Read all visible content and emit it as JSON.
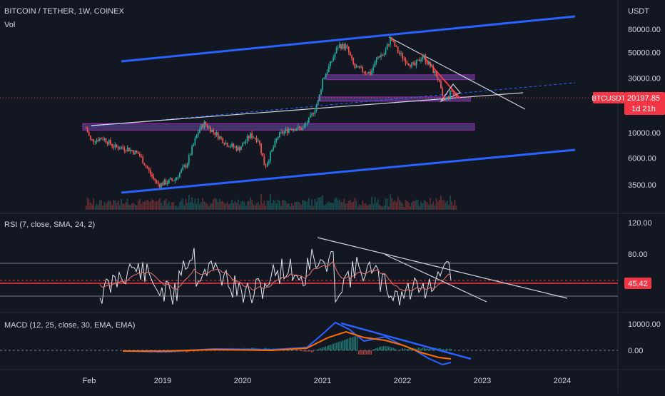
{
  "header": {
    "symbol_title": "BITCOIN / TETHER, 1W, COINEX",
    "volume_label": "Vol",
    "currency": "USDT"
  },
  "price_badge": {
    "ticker": "BTCUSDT",
    "price": "20197.85",
    "countdown": "1d 21h"
  },
  "rsi_badge": "45.42",
  "colors": {
    "background": "#131722",
    "up": "#26a69a",
    "down": "#ef5350",
    "channel": "#2962ff",
    "zone": "#7e57c2",
    "price_line": "#f23645",
    "text": "#d1d4dc",
    "macd": "#2962ff",
    "signal": "#ff6d00"
  },
  "chart_data": [
    {
      "type": "line",
      "name": "price-pane",
      "scale": "log",
      "x_ticks": [
        "Feb",
        "2019",
        "2020",
        "2021",
        "2022",
        "2023",
        "2024"
      ],
      "y_ticks": [
        "80000.00",
        "50000.00",
        "30000.00",
        "10000.00",
        "6000.00",
        "3500.00"
      ],
      "y_tick_values": [
        80000,
        50000,
        30000,
        10000,
        6000,
        3500
      ],
      "x": [
        2018.04,
        2018.1,
        2018.25,
        2018.4,
        2018.55,
        2018.7,
        2018.88,
        2018.95,
        2019.0,
        2019.15,
        2019.3,
        2019.45,
        2019.52,
        2019.65,
        2019.8,
        2019.95,
        2020.1,
        2020.2,
        2020.28,
        2020.45,
        2020.6,
        2020.75,
        2020.85,
        2020.95,
        2021.0,
        2021.1,
        2021.2,
        2021.3,
        2021.4,
        2021.5,
        2021.6,
        2021.7,
        2021.77,
        2021.85,
        2021.95,
        2022.05,
        2022.15,
        2022.25,
        2022.35,
        2022.45,
        2022.5,
        2022.55,
        2022.62,
        2022.68
      ],
      "close": [
        11000,
        8500,
        9000,
        7500,
        7300,
        6500,
        4000,
        3500,
        3600,
        3900,
        5300,
        10500,
        12000,
        10000,
        8000,
        7200,
        9500,
        8700,
        5000,
        9500,
        11000,
        10800,
        13500,
        19000,
        29000,
        40000,
        58000,
        56000,
        37000,
        35000,
        33000,
        47000,
        48000,
        67000,
        50000,
        42000,
        38000,
        47000,
        38000,
        29500,
        20000,
        19500,
        23500,
        20197.85
      ],
      "zones": [
        {
          "label": "",
          "from_x": 2018.0,
          "to_x": 2022.9,
          "low": 10500,
          "high": 12000
        },
        {
          "label": "",
          "from_x": 2021.05,
          "to_x": 2022.9,
          "low": 29000,
          "high": 32000
        },
        {
          "label": "",
          "from_x": 2020.95,
          "to_x": 2022.85,
          "low": 19000,
          "high": 20500
        }
      ],
      "last_price": 20197.85
    },
    {
      "type": "line",
      "name": "RSI (7, close, SMA, 24, 2)",
      "y_ticks": [
        "120.00",
        "80.00"
      ],
      "y_tick_values": [
        120,
        80
      ],
      "levels": [
        70,
        30
      ],
      "current": 45.42
    },
    {
      "type": "line",
      "name": "MACD (12, 25, close, 30, EMA, EMA)",
      "y_ticks": [
        "10000.00",
        "0.00"
      ],
      "y_tick_values": [
        10000,
        0
      ]
    }
  ],
  "labels": {
    "rsi_title": "RSI (7, close, SMA, 24, 2)",
    "macd_title": "MACD (12, 25, close, 30, EMA, EMA)"
  }
}
